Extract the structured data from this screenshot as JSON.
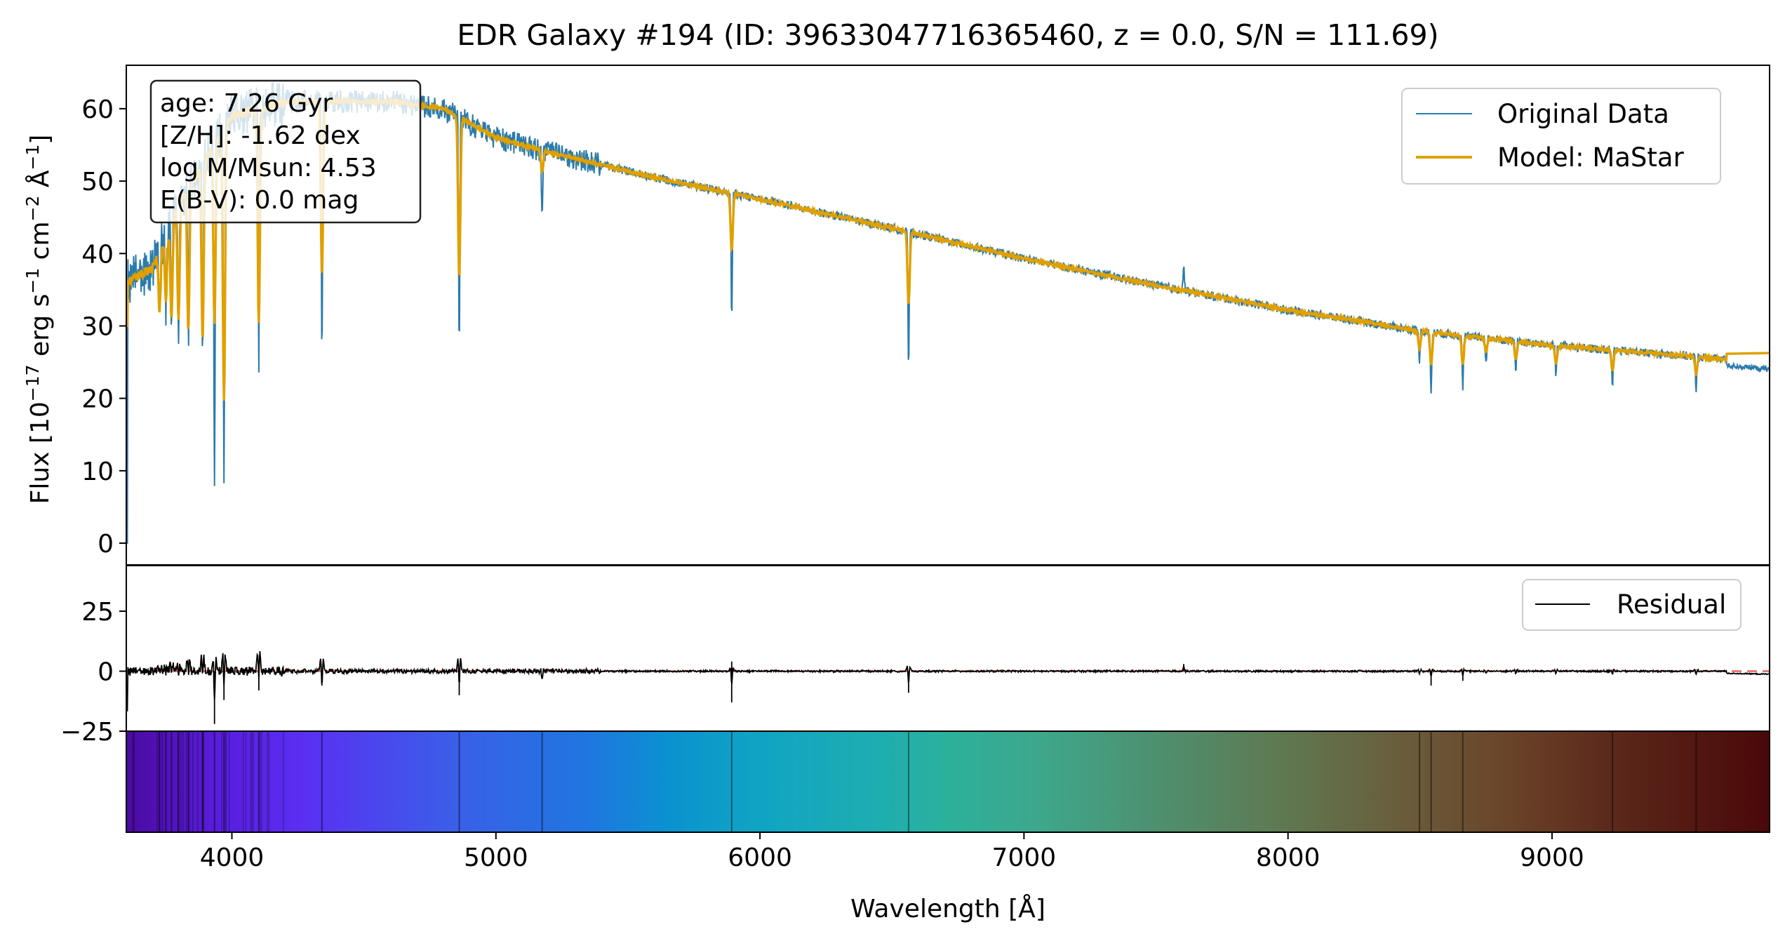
{
  "chart_data": {
    "type": "line",
    "title": "EDR Galaxy #194 (ID: 39633047716365460, z = 0.0, S/N = 111.69)",
    "xlabel": "Wavelength [Å]",
    "ylabel": {
      "prefix": "Flux [10",
      "exp1": "−17",
      "mid1": " erg s",
      "exp2": "−1",
      "mid2": " cm",
      "exp3": "−2",
      "mid3": " Å",
      "exp4": "−1",
      "suffix": "]"
    },
    "xlim": [
      3600,
      9824
    ],
    "ylim_main": [
      -3,
      66
    ],
    "ylim_residual": [
      -25,
      44
    ],
    "x_ticks": [
      "4000",
      "5000",
      "6000",
      "7000",
      "8000",
      "9000"
    ],
    "y_ticks_main": [
      "0",
      "10",
      "20",
      "30",
      "40",
      "50",
      "60"
    ],
    "y_ticks_residual": [
      "25",
      "0",
      "−25"
    ],
    "info_box": [
      "age: 7.26 Gyr",
      "[Z/H]: -1.62 dex",
      "log M/Msun: 4.53",
      "E(B-V): 0.0 mag"
    ],
    "legend_main": [
      {
        "label": "Original Data",
        "color": "#2b7bab"
      },
      {
        "label": "Model: MaStar",
        "color": "#e0a000"
      }
    ],
    "legend_residual": [
      {
        "label": "Residual",
        "color": "#000000"
      }
    ],
    "legend_placement": "top-right",
    "grid": false,
    "continuum_points": [
      [
        3600,
        36
      ],
      [
        3700,
        38
      ],
      [
        3800,
        47
      ],
      [
        3900,
        53
      ],
      [
        4000,
        59
      ],
      [
        4200,
        61
      ],
      [
        4600,
        61
      ],
      [
        4800,
        60
      ],
      [
        5000,
        56
      ],
      [
        5200,
        54
      ],
      [
        5600,
        50.5
      ],
      [
        6000,
        47.5
      ],
      [
        6500,
        43.5
      ],
      [
        7000,
        39.3
      ],
      [
        7500,
        35.6
      ],
      [
        8000,
        32.2
      ],
      [
        8500,
        29.3
      ],
      [
        9000,
        27.3
      ],
      [
        9500,
        25.9
      ],
      [
        9824,
        24.8
      ]
    ],
    "absorption_lines": [
      {
        "wavelength": 3726,
        "depth_data": 9,
        "depth_model": 8
      },
      {
        "wavelength": 3750,
        "depth_data": 10,
        "depth_model": 9
      },
      {
        "wavelength": 3771,
        "depth_data": 14,
        "depth_model": 13
      },
      {
        "wavelength": 3798,
        "depth_data": 17,
        "depth_model": 16
      },
      {
        "wavelength": 3835,
        "depth_data": 22,
        "depth_model": 20
      },
      {
        "wavelength": 3889,
        "depth_data": 26,
        "depth_model": 24
      },
      {
        "wavelength": 3934,
        "depth_data": 48,
        "depth_model": 25
      },
      {
        "wavelength": 3970,
        "depth_data": 50,
        "depth_model": 38
      },
      {
        "wavelength": 4102,
        "depth_data": 34,
        "depth_model": 30
      },
      {
        "wavelength": 4341,
        "depth_data": 35,
        "depth_model": 24
      },
      {
        "wavelength": 4861,
        "depth_data": 32,
        "depth_model": 22
      },
      {
        "wavelength": 5175,
        "depth_data": 10,
        "depth_model": 3
      },
      {
        "wavelength": 5893,
        "depth_data": 18,
        "depth_model": 8
      },
      {
        "wavelength": 6563,
        "depth_data": 19.5,
        "depth_model": 10
      },
      {
        "wavelength": 8498,
        "depth_data": 4,
        "depth_model": 2.5
      },
      {
        "wavelength": 8542,
        "depth_data": 9,
        "depth_model": 4.5
      },
      {
        "wavelength": 8662,
        "depth_data": 7,
        "depth_model": 4
      },
      {
        "wavelength": 8750,
        "depth_data": 3.5,
        "depth_model": 2
      },
      {
        "wavelength": 8863,
        "depth_data": 4,
        "depth_model": 2.5
      },
      {
        "wavelength": 9015,
        "depth_data": 4,
        "depth_model": 2.5
      },
      {
        "wavelength": 9229,
        "depth_data": 5,
        "depth_model": 3
      },
      {
        "wavelength": 9546,
        "depth_data": 5,
        "depth_model": 2.5
      }
    ],
    "emission_features": [
      {
        "wavelength": 7605,
        "height_data": 3
      }
    ],
    "residual_spikes": [
      {
        "wavelength": 3934,
        "value": -22
      },
      {
        "wavelength": 3970,
        "value": -12
      },
      {
        "wavelength": 4102,
        "value": -8
      },
      {
        "wavelength": 4341,
        "value": -6
      },
      {
        "wavelength": 4861,
        "value": -10
      },
      {
        "wavelength": 5893,
        "value": -13
      },
      {
        "wavelength": 5893,
        "value": 4
      },
      {
        "wavelength": 6563,
        "value": -9
      },
      {
        "wavelength": 7605,
        "value": 3
      },
      {
        "wavelength": 8542,
        "value": -6
      },
      {
        "wavelength": 8662,
        "value": -4
      }
    ],
    "spectrum_bar_lines": [
      3726,
      3750,
      3771,
      3798,
      3835,
      3889,
      3934,
      3970,
      4102,
      4341,
      4861,
      5175,
      5893,
      6563,
      8498,
      8542,
      8662,
      9229,
      9546
    ]
  }
}
